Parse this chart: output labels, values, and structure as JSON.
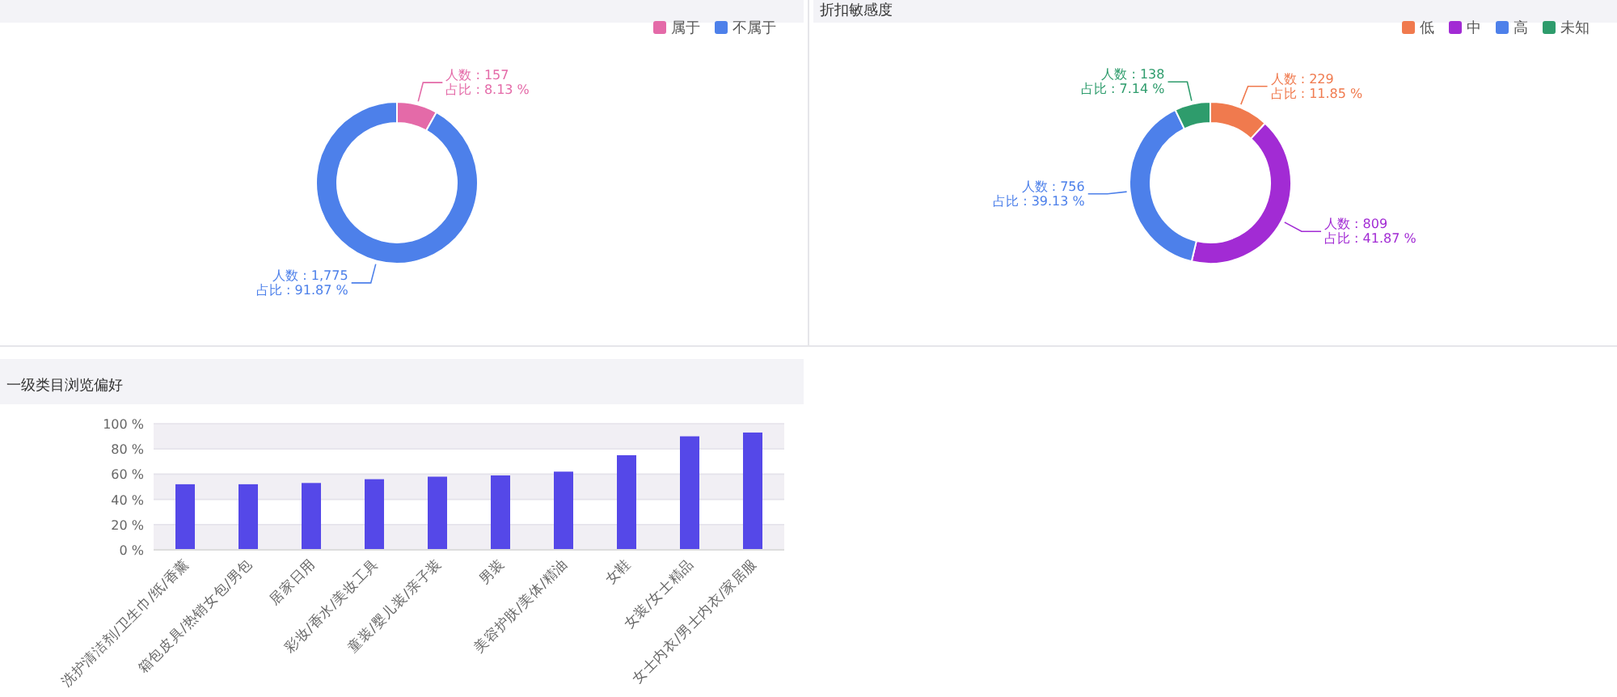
{
  "chart_data": [
    {
      "type": "donut",
      "categories": [
        "属于",
        "不属于"
      ],
      "values": [
        157,
        1775
      ],
      "colors": [
        "#e46aa8",
        "#4d80ea"
      ],
      "legend": "top right",
      "value_labels": [
        "人数 : 157\n占比 : 8.13 %",
        "人数 : 1,775\n占比 : 91.87 %"
      ]
    },
    {
      "type": "donut",
      "title": "折扣敏感度",
      "categories": [
        "低",
        "中",
        "高",
        "未知"
      ],
      "values": [
        229,
        809,
        756,
        138
      ],
      "colors": [
        "#f07a4e",
        "#a22bd4",
        "#4d80ea",
        "#2e9c6c"
      ],
      "legend": "top right",
      "value_labels": [
        "人数 : 229\n占比 : 11.85 %",
        "人数 : 809\n占比 : 41.87 %",
        "人数 : 756\n占比 : 39.13 %",
        "人数 : 138\n占比 : 7.14 %"
      ]
    },
    {
      "type": "bar",
      "title": "一级类目浏览偏好",
      "categories": [
        "洗护清洁剂/卫生巾/纸/香薰",
        "箱包皮具/热销女包/男包",
        "居家日用",
        "彩妆/香水/美妆工具",
        "童装/婴儿装/亲子装",
        "男装",
        "美容护肤/美体/精油",
        "女鞋",
        "女装/女士精品",
        "女士内衣/男士内衣/家居服"
      ],
      "values": [
        52,
        52,
        53,
        56,
        58,
        59,
        62,
        75,
        90,
        93
      ],
      "color": "#5548e8",
      "ylim": [
        0,
        100
      ],
      "yticks": [
        {
          "value": 0,
          "label": "0 %"
        },
        {
          "value": 20,
          "label": "20 %"
        },
        {
          "value": 40,
          "label": "40 %"
        },
        {
          "value": 60,
          "label": "60 %"
        },
        {
          "value": 80,
          "label": "80 %"
        },
        {
          "value": 100,
          "label": "100 %"
        }
      ],
      "grid": "y"
    }
  ]
}
